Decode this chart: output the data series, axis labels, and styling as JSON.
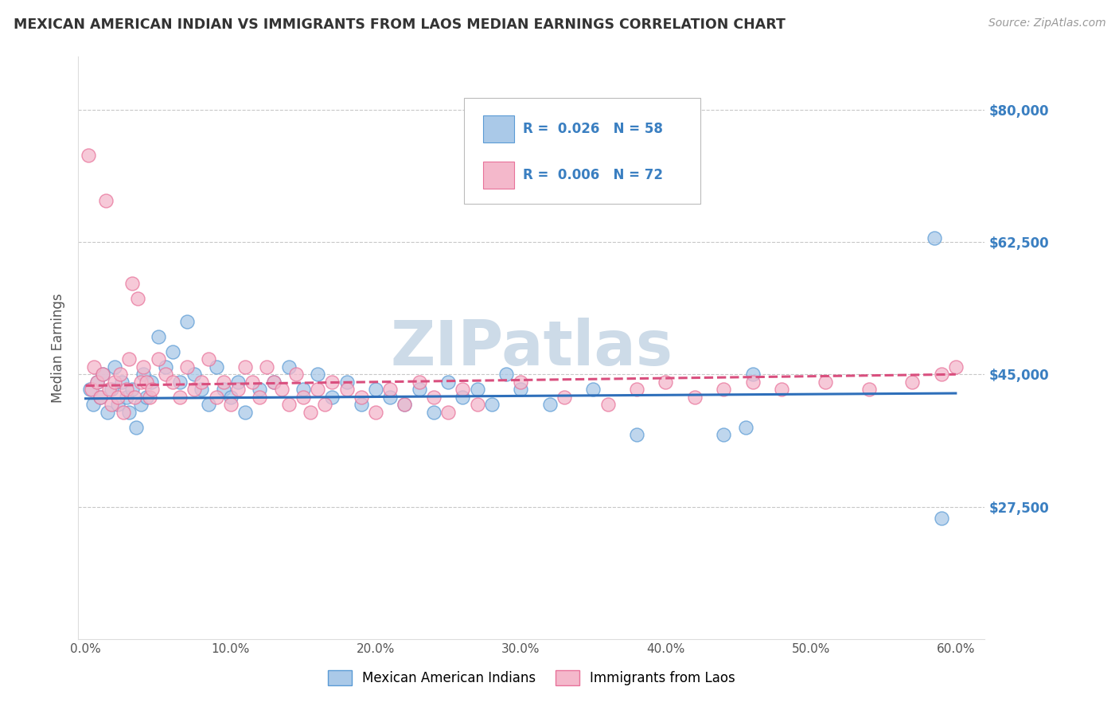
{
  "title": "MEXICAN AMERICAN INDIAN VS IMMIGRANTS FROM LAOS MEDIAN EARNINGS CORRELATION CHART",
  "source": "Source: ZipAtlas.com",
  "xlabel_ticks": [
    "0.0%",
    "10.0%",
    "20.0%",
    "30.0%",
    "40.0%",
    "50.0%",
    "60.0%"
  ],
  "xlabel_vals": [
    0.0,
    10.0,
    20.0,
    30.0,
    40.0,
    50.0,
    60.0
  ],
  "ylabel": "Median Earnings",
  "ylabel_ticks": [
    27500,
    45000,
    62500,
    80000
  ],
  "ylabel_labels": [
    "$27,500",
    "$45,000",
    "$62,500",
    "$80,000"
  ],
  "ylim": [
    10000,
    87000
  ],
  "xlim": [
    -0.5,
    62.0
  ],
  "blue_label": "Mexican American Indians",
  "pink_label": "Immigrants from Laos",
  "blue_R": "0.026",
  "blue_N": "58",
  "pink_R": "0.006",
  "pink_N": "72",
  "blue_color": "#aac9e8",
  "pink_color": "#f4b8cb",
  "blue_edge": "#5b9bd5",
  "pink_edge": "#e8729a",
  "trend_blue_color": "#2e6fba",
  "trend_pink_color": "#d94f7e",
  "background_color": "#ffffff",
  "watermark": "ZIPatlas",
  "watermark_color": "#cddbe8",
  "title_color": "#333333",
  "axis_label_color": "#555555",
  "tick_color_y": "#3a7fc1",
  "grid_color": "#c8c8c8",
  "blue_scatter_x": [
    0.3,
    0.5,
    0.8,
    1.0,
    1.2,
    1.5,
    1.8,
    2.0,
    2.2,
    2.5,
    2.8,
    3.0,
    3.2,
    3.5,
    3.8,
    4.0,
    4.2,
    4.5,
    5.0,
    5.5,
    6.0,
    6.5,
    7.0,
    7.5,
    8.0,
    8.5,
    9.0,
    9.5,
    10.0,
    10.5,
    11.0,
    12.0,
    13.0,
    14.0,
    15.0,
    16.0,
    17.0,
    18.0,
    19.0,
    20.0,
    21.0,
    22.0,
    23.0,
    24.0,
    25.0,
    26.0,
    27.0,
    28.0,
    29.0,
    30.0,
    32.0,
    35.0,
    38.0,
    44.0,
    45.5,
    46.0,
    58.5,
    59.0
  ],
  "blue_scatter_y": [
    43000,
    41000,
    44000,
    42000,
    45000,
    40000,
    43000,
    46000,
    41000,
    44000,
    42000,
    40000,
    43000,
    38000,
    41000,
    45000,
    42000,
    44000,
    50000,
    46000,
    48000,
    44000,
    52000,
    45000,
    43000,
    41000,
    46000,
    43000,
    42000,
    44000,
    40000,
    43000,
    44000,
    46000,
    43000,
    45000,
    42000,
    44000,
    41000,
    43000,
    42000,
    41000,
    43000,
    40000,
    44000,
    42000,
    43000,
    41000,
    45000,
    43000,
    41000,
    43000,
    37000,
    37000,
    38000,
    45000,
    63000,
    26000
  ],
  "pink_scatter_x": [
    0.2,
    0.4,
    0.6,
    0.8,
    1.0,
    1.2,
    1.4,
    1.6,
    1.8,
    2.0,
    2.2,
    2.4,
    2.6,
    2.8,
    3.0,
    3.2,
    3.4,
    3.6,
    3.8,
    4.0,
    4.2,
    4.4,
    4.6,
    5.0,
    5.5,
    6.0,
    6.5,
    7.0,
    7.5,
    8.0,
    8.5,
    9.0,
    9.5,
    10.0,
    10.5,
    11.0,
    11.5,
    12.0,
    12.5,
    13.0,
    13.5,
    14.0,
    14.5,
    15.0,
    15.5,
    16.0,
    16.5,
    17.0,
    18.0,
    19.0,
    20.0,
    21.0,
    22.0,
    23.0,
    24.0,
    25.0,
    26.0,
    27.0,
    30.0,
    33.0,
    36.0,
    38.0,
    40.0,
    42.0,
    44.0,
    46.0,
    48.0,
    51.0,
    54.0,
    57.0,
    59.0,
    60.0
  ],
  "pink_scatter_y": [
    74000,
    43000,
    46000,
    44000,
    42000,
    45000,
    68000,
    43000,
    41000,
    44000,
    42000,
    45000,
    40000,
    43000,
    47000,
    57000,
    42000,
    55000,
    44000,
    46000,
    44000,
    42000,
    43000,
    47000,
    45000,
    44000,
    42000,
    46000,
    43000,
    44000,
    47000,
    42000,
    44000,
    41000,
    43000,
    46000,
    44000,
    42000,
    46000,
    44000,
    43000,
    41000,
    45000,
    42000,
    40000,
    43000,
    41000,
    44000,
    43000,
    42000,
    40000,
    43000,
    41000,
    44000,
    42000,
    40000,
    43000,
    41000,
    44000,
    42000,
    41000,
    43000,
    44000,
    42000,
    43000,
    44000,
    43000,
    44000,
    43000,
    44000,
    45000,
    46000
  ],
  "blue_trend_x": [
    0,
    60
  ],
  "blue_trend_y": [
    41800,
    42500
  ],
  "pink_trend_x": [
    0,
    60
  ],
  "pink_trend_y": [
    43500,
    45000
  ]
}
